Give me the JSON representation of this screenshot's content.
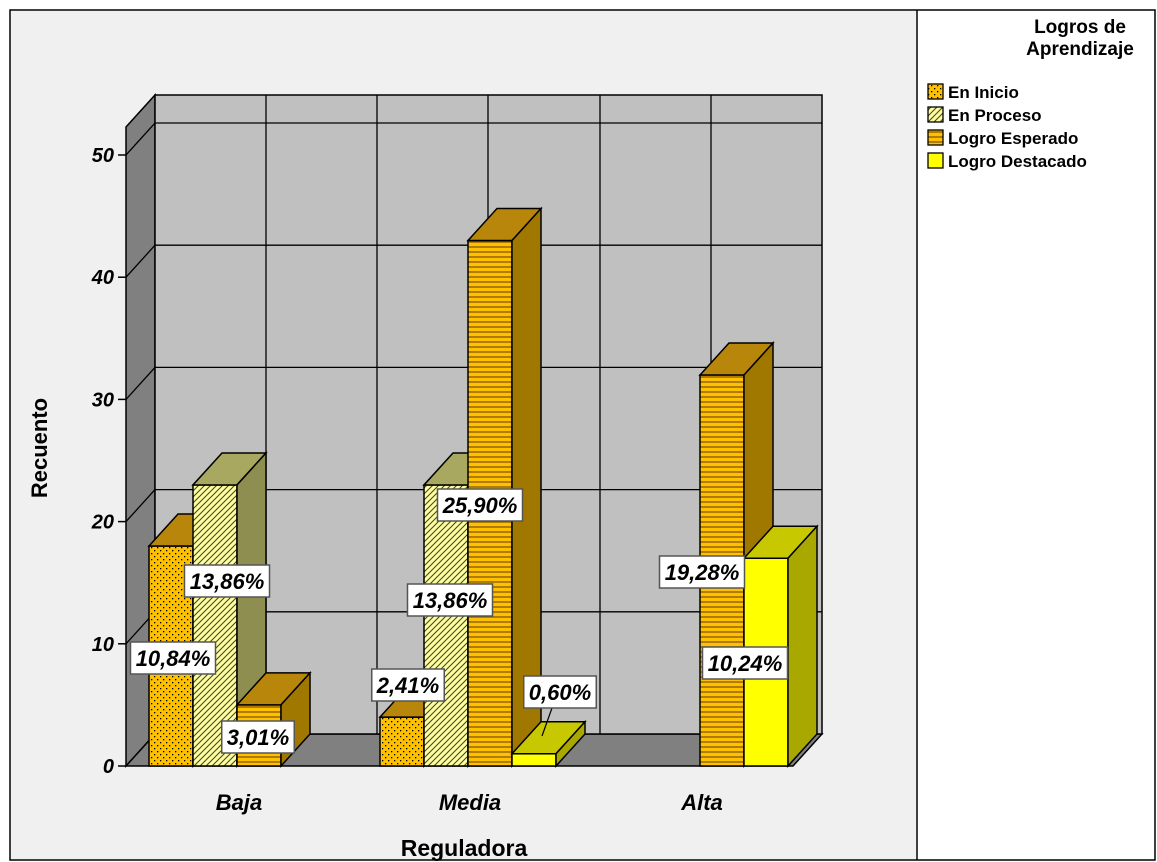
{
  "chart_data": {
    "type": "bar",
    "mode": "3d-clustered",
    "xlabel": "Reguladora",
    "ylabel": "Recuento",
    "categories": [
      "Baja",
      "Media",
      "Alta"
    ],
    "ylim": [
      0,
      50
    ],
    "yticks": [
      "0",
      "10",
      "20",
      "30",
      "40",
      "50"
    ],
    "grid": true,
    "legend": {
      "title_line1": "Logros de",
      "title_line2": "Aprendizaje",
      "position": "right"
    },
    "series": [
      {
        "name": "En Inicio",
        "values": [
          18,
          4,
          0
        ],
        "labels": [
          "10,84%",
          "2,41%",
          ""
        ],
        "color": "#FFC000",
        "pattern": "dots"
      },
      {
        "name": "En Proceso",
        "values": [
          23,
          23,
          0
        ],
        "labels": [
          "13,86%",
          "13,86%",
          ""
        ],
        "color": "#FFFF99",
        "pattern": "diag"
      },
      {
        "name": "Logro Esperado",
        "values": [
          5,
          43,
          32
        ],
        "labels": [
          "3,01%",
          "25,90%",
          "19,28%"
        ],
        "color": "#FFC000",
        "pattern": "hlines"
      },
      {
        "name": "Logro Destacado",
        "values": [
          0,
          1,
          17
        ],
        "labels": [
          "",
          "0,60%",
          "10,24%"
        ],
        "color": "#FFFF00",
        "pattern": "solid"
      }
    ]
  }
}
